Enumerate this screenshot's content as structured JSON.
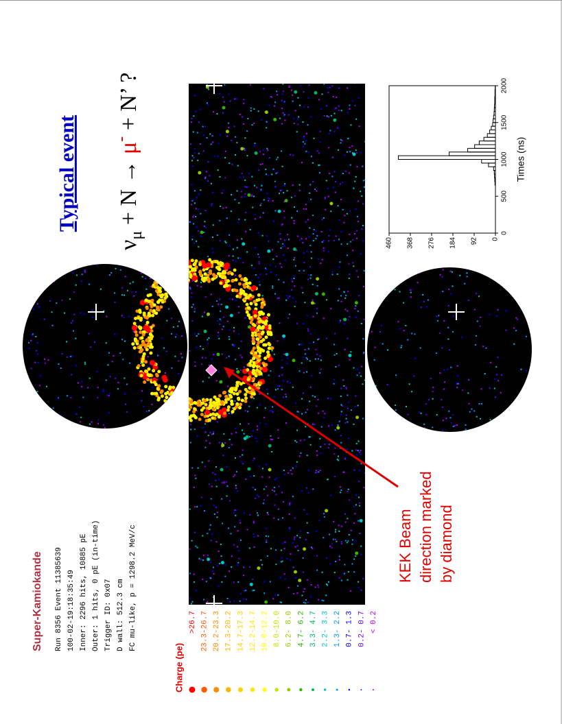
{
  "info": {
    "title": "Super-Kamiokande",
    "lines": [
      "Run 8356 Event 11385639",
      "100-02-19:18:35:49",
      "Inner: 2296 hits, 10885 pE",
      "Outer: 1 hits, 0 pE (in-time)",
      "Trigger ID: 0x07",
      "D wall: 512.3 cm",
      "FC mu-like, p = 1298.2 MeV/c"
    ]
  },
  "charge_legend": {
    "title": "Charge (pe)",
    "entries": [
      {
        "label": ">26.7",
        "color": "#ff0000"
      },
      {
        "label": "23.3-26.7",
        "color": "#ff5a00"
      },
      {
        "label": "20.2-23.3",
        "color": "#ff8c00"
      },
      {
        "label": "17.3-20.2",
        "color": "#ffb400"
      },
      {
        "label": "14.7-17.3",
        "color": "#ffd200"
      },
      {
        "label": "12.2-14.7",
        "color": "#ffe600"
      },
      {
        "label": "10.0-12.2",
        "color": "#ffff00"
      },
      {
        "label": "8.0-10.0",
        "color": "#c8e600"
      },
      {
        "label": "6.2- 8.0",
        "color": "#96c800"
      },
      {
        "label": "4.7- 6.2",
        "color": "#32b400"
      },
      {
        "label": "3.3- 4.7",
        "color": "#00b464"
      },
      {
        "label": "2.2- 3.3",
        "color": "#00c8c8"
      },
      {
        "label": "1.3- 2.2",
        "color": "#0096ff"
      },
      {
        "label": "0.7- 1.3",
        "color": "#0000ff"
      },
      {
        "label": "0.2- 0.7",
        "color": "#6400ff"
      },
      {
        "label": "< 0.2",
        "color": "#b400ff"
      }
    ]
  },
  "title": "Typical event",
  "reaction": {
    "nu": "ν",
    "nu_sub": "μ",
    "middle": " + N → ",
    "mu": "μ",
    "mu_sup": "-",
    "end": " + N’ ?"
  },
  "annotation": [
    "KEK Beam",
    "direction marked",
    "by diamond"
  ],
  "chart_data": {
    "type": "histogram",
    "x_label": "Times (ns)",
    "bins": [
      0,
      50,
      100,
      150,
      200,
      250,
      300,
      350,
      400,
      450,
      500,
      550,
      600,
      650,
      700,
      750,
      800,
      850,
      900,
      950,
      1000,
      1050,
      1100,
      1150,
      1200,
      1250,
      1300,
      1350,
      1400,
      1450,
      1500,
      1550,
      1600,
      1650,
      1700,
      1750,
      1800,
      1850,
      1900,
      1950,
      2000
    ],
    "values": [
      0,
      0,
      0,
      0,
      0,
      0,
      0,
      0,
      0,
      0,
      0,
      0,
      0,
      2,
      3,
      4,
      5,
      8,
      30,
      60,
      420,
      200,
      120,
      90,
      70,
      50,
      35,
      25,
      18,
      12,
      10,
      8,
      6,
      5,
      4,
      3,
      3,
      2,
      2,
      1
    ],
    "color": "#000000",
    "xlim": [
      0,
      2000
    ],
    "ylim": [
      0,
      460
    ],
    "xticks": [
      0,
      500,
      1000,
      1500,
      2000
    ],
    "yticks": [
      0,
      92,
      184,
      276,
      368,
      460
    ]
  }
}
